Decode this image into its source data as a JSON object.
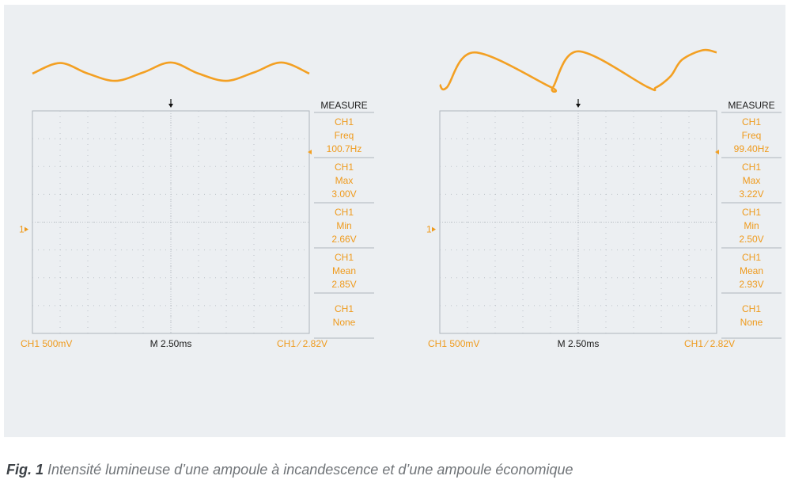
{
  "colors": {
    "panel_bg": "#eceff2",
    "trace": "#f3a023",
    "label_orange": "#ef9a1c",
    "grid": "#bcc2c8",
    "frame": "#aeb5bc",
    "text_dark": "#1c1c1c"
  },
  "caption": {
    "fig": "Fig. 1",
    "text": "Intensité lumineuse d’une ampoule à incandescence et d’une ampoule économique"
  },
  "chart_data": [
    {
      "type": "line",
      "series": [
        {
          "x": [
            0,
            2.5,
            5,
            7.5,
            10,
            12.5,
            15,
            17.5,
            20,
            22.5,
            25
          ],
          "values": [
            2.8,
            2.99,
            2.8,
            2.67,
            2.82,
            3.0,
            2.8,
            2.67,
            2.82,
            3.0,
            2.8
          ]
        }
      ],
      "xlim": [
        0,
        25
      ],
      "ylim": [
        -1.87,
        2.13
      ],
      "grid": true,
      "divisions": {
        "x": 10,
        "y": 8
      },
      "ground_marker": "1",
      "ground_level": 0,
      "footer": {
        "ch_scale": "CH1  500mV",
        "timebase": "M 2.50ms",
        "trigger": "CH1 ∕ 2.82V"
      },
      "measure": {
        "title": "MEASURE",
        "blocks": [
          [
            "CH1",
            "Freq",
            "100.7Hz"
          ],
          [
            "CH1",
            "Max",
            "3.00V"
          ],
          [
            "CH1",
            "Min",
            "2.66V"
          ],
          [
            "CH1",
            "Mean",
            "2.85V"
          ],
          [
            "CH1",
            "None"
          ]
        ]
      }
    },
    {
      "type": "line",
      "series": [
        {
          "x": [
            0,
            0.9,
            4.5,
            14.4,
            14.7,
            18.0,
            27.0,
            28.1,
            30.0,
            31.5,
            34.2,
            36.0
          ],
          "values": [
            2.6,
            2.55,
            3.18,
            2.56,
            2.55,
            3.2,
            2.56,
            2.55,
            2.75,
            3.05,
            3.22,
            3.18
          ]
        }
      ],
      "xlim": [
        0,
        36
      ],
      "ylim": [
        -1.87,
        2.13
      ],
      "grid": true,
      "divisions": {
        "x": 10,
        "y": 8
      },
      "ground_marker": "1",
      "ground_level": 0,
      "footer": {
        "ch_scale": "CH1  500mV",
        "timebase": "M 2.50ms",
        "trigger": "CH1 ∕ 2.82V"
      },
      "measure": {
        "title": "MEASURE",
        "blocks": [
          [
            "CH1",
            "Freq",
            "99.40Hz"
          ],
          [
            "CH1",
            "Max",
            "3.22V"
          ],
          [
            "CH1",
            "Min",
            "2.50V"
          ],
          [
            "CH1",
            "Mean",
            "2.93V"
          ],
          [
            "CH1",
            "None"
          ]
        ]
      }
    }
  ]
}
